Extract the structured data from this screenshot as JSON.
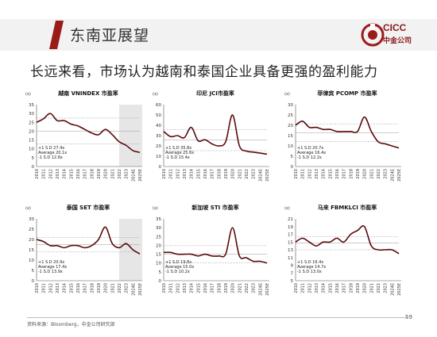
{
  "header": {
    "title": "东南亚展望",
    "logo_en": "CICC",
    "logo_cn": "中金公司"
  },
  "subtitle": "长远来看，市场认为越南和泰国企业具备更强的盈利能力",
  "footer": {
    "source": "资料来源：Bloomberg，中金公司研究部",
    "page": "59"
  },
  "colors": {
    "accent": "#9b1b1b",
    "line": "#5a0a0a",
    "band": "#e6e6e6"
  },
  "chart_data": [
    {
      "type": "line",
      "title": "越南 VNINDEX 市盈率",
      "unit": "(x)",
      "ylim": [
        0,
        35
      ],
      "yticks": [
        0,
        5,
        10,
        15,
        20,
        25,
        30,
        35
      ],
      "x": [
        "2010",
        "2011",
        "2012",
        "2013",
        "2014",
        "2015",
        "2016",
        "2017",
        "2018",
        "2019",
        "2020",
        "2021",
        "2022",
        "2023",
        "2024E",
        "2025E"
      ],
      "forecast_from": 2022,
      "values": [
        25,
        27,
        30,
        26,
        26,
        24,
        23,
        21,
        19,
        18,
        21,
        18,
        14,
        12,
        9,
        8
      ],
      "stats": {
        "plus_sd": "+1 S.D   27.4x",
        "average": "Average 20.1x",
        "minus_sd": "-1 S.D   12.8x"
      },
      "ref_lines": [
        27.4,
        20.1,
        12.8
      ]
    },
    {
      "type": "line",
      "title": "印尼 JCI市盈率",
      "unit": "(x)",
      "ylim": [
        0,
        60
      ],
      "yticks": [
        0,
        10,
        20,
        30,
        40,
        50,
        60
      ],
      "x": [
        "2010",
        "2011",
        "2012",
        "2013",
        "2014",
        "2015",
        "2016",
        "2017",
        "2018",
        "2019",
        "2020",
        "2021",
        "2022",
        "2023",
        "2024E",
        "2025E"
      ],
      "values": [
        34,
        29,
        30,
        28,
        38,
        25,
        26,
        22,
        20,
        24,
        50,
        20,
        15,
        14,
        13,
        12
      ],
      "stats": {
        "plus_sd": "+1 S.D   35.8x",
        "average": "Average 25.6x",
        "minus_sd": "-1 S.D   15.4x"
      },
      "ref_lines": [
        35.8,
        25.6,
        15.4
      ]
    },
    {
      "type": "line",
      "title": "菲律宾 PCOMP 市盈率",
      "unit": "(x)",
      "ylim": [
        0,
        30
      ],
      "yticks": [
        0,
        5,
        10,
        15,
        20,
        25,
        30
      ],
      "x": [
        "2010",
        "2011",
        "2012",
        "2013",
        "2014",
        "2015",
        "2016",
        "2017",
        "2018",
        "2019",
        "2020",
        "2021",
        "2022",
        "2023",
        "2024E",
        "2025E"
      ],
      "values": [
        20,
        22,
        19,
        19,
        18,
        18,
        17,
        17,
        17,
        17,
        24,
        17,
        12,
        11,
        10,
        9
      ],
      "stats": {
        "plus_sd": "+1 S.D   20.7x",
        "average": "Average 16.4x",
        "minus_sd": "-1 S.D   12.2x"
      },
      "ref_lines": [
        20.7,
        16.4,
        12.2
      ]
    },
    {
      "type": "line",
      "title": "泰国 SET 市盈率",
      "unit": "(x)",
      "ylim": [
        0,
        30
      ],
      "yticks": [
        0,
        5,
        10,
        15,
        20,
        25,
        30
      ],
      "x": [
        "2010",
        "2011",
        "2012",
        "2013",
        "2014",
        "2015",
        "2016",
        "2017",
        "2018",
        "2019",
        "2020",
        "2021",
        "2022",
        "2023",
        "2024E",
        "2025E"
      ],
      "forecast_from": 2022,
      "values": [
        20,
        19,
        17,
        17,
        16,
        17,
        17,
        16,
        17,
        20,
        26,
        18,
        16,
        18,
        15,
        13
      ],
      "stats": {
        "plus_sd": "+1 S.D   20.9x",
        "average": "Average 17.4x",
        "minus_sd": "-1 S.D   13.9x"
      },
      "ref_lines": [
        20.9,
        17.4,
        13.9
      ]
    },
    {
      "type": "line",
      "title": "新加坡 STI 市盈率",
      "unit": "(x)",
      "ylim": [
        0,
        35
      ],
      "yticks": [
        0,
        5,
        10,
        15,
        20,
        25,
        30,
        35
      ],
      "x": [
        "2010",
        "2011",
        "2012",
        "2013",
        "2014",
        "2015",
        "2016",
        "2017",
        "2018",
        "2019",
        "2020",
        "2021",
        "2022",
        "2023",
        "2024E",
        "2025E"
      ],
      "values": [
        16,
        16,
        15,
        15,
        15,
        14,
        15,
        14,
        14,
        15,
        30,
        14,
        13,
        11,
        11,
        10
      ],
      "stats": {
        "plus_sd": "+1 S.D   19.8x",
        "average": "Average 15.0x",
        "minus_sd": "-1 S.D   10.2x"
      },
      "ref_lines": [
        19.8,
        15.0,
        10.2
      ]
    },
    {
      "type": "line",
      "title": "马来 FBMKLCI 市盈率",
      "unit": "(x)",
      "ylim": [
        5,
        21
      ],
      "yticks": [
        5,
        7,
        9,
        11,
        13,
        15,
        17,
        19,
        21
      ],
      "x": [
        "2010",
        "2011",
        "2012",
        "2013",
        "2014",
        "2015",
        "2016",
        "2017",
        "2018",
        "2019",
        "2020",
        "2021",
        "2022",
        "2023",
        "2024E",
        "2025E"
      ],
      "values": [
        15,
        16,
        15,
        14,
        15,
        15,
        16,
        15,
        17,
        18,
        19,
        14,
        13,
        13,
        13,
        12
      ],
      "stats": {
        "plus_sd": "+1 S.D   16.4x",
        "average": "Average 14.7x",
        "minus_sd": "-1 S.D   13.0x"
      },
      "ref_lines": [
        16.4,
        14.7,
        13.0
      ]
    }
  ]
}
